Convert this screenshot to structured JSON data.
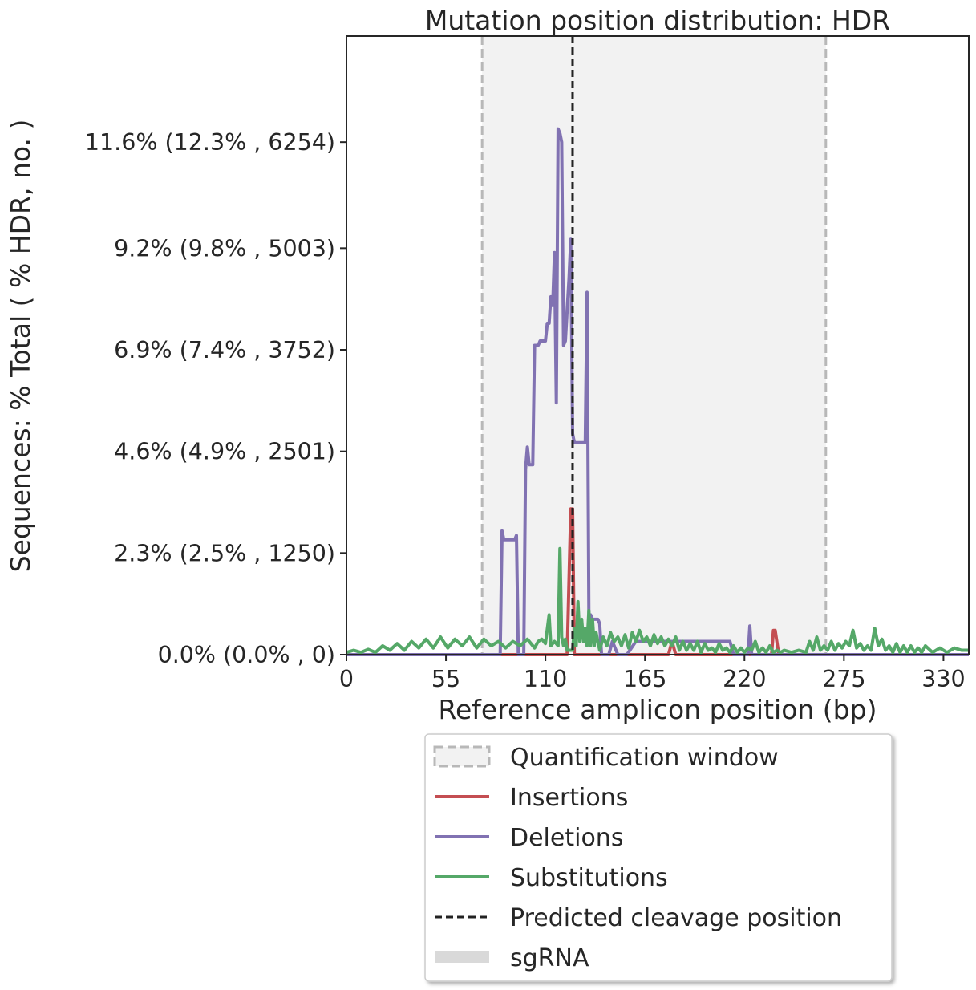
{
  "chart_data": {
    "type": "line",
    "title": "Mutation position distribution: HDR",
    "xlabel": "Reference amplicon position (bp)",
    "ylabel": "Sequences: % Total ( % HDR, no. )",
    "xlim": [
      0,
      344
    ],
    "ylim": [
      0,
      14
    ],
    "xticks": [
      0,
      55,
      110,
      165,
      220,
      275,
      330
    ],
    "yticks": [
      {
        "value": 0.0,
        "label": "0.0% (0.0% , 0)"
      },
      {
        "value": 2.3,
        "label": "2.3% (2.5% , 1250)"
      },
      {
        "value": 4.6,
        "label": "4.6% (4.9% , 2501)"
      },
      {
        "value": 6.9,
        "label": "6.9% (7.4% , 3752)"
      },
      {
        "value": 9.2,
        "label": "9.2% (9.8% , 5003)"
      },
      {
        "value": 11.6,
        "label": "11.6% (12.3% , 6254)"
      }
    ],
    "quantification_window": [
      75,
      265
    ],
    "predicted_cleavage_position": 125,
    "series": [
      {
        "name": "Insertions",
        "color": "#c44e52",
        "points": [
          [
            0,
            0
          ],
          [
            122,
            0
          ],
          [
            124,
            3.3
          ],
          [
            125,
            3.3
          ],
          [
            126,
            0
          ],
          [
            178,
            0
          ],
          [
            180,
            0.3
          ],
          [
            182,
            0
          ],
          [
            235,
            0
          ],
          [
            236,
            0.55
          ],
          [
            237,
            0.55
          ],
          [
            239,
            0
          ],
          [
            344,
            0
          ]
        ]
      },
      {
        "name": "Deletions",
        "color": "#8172b2",
        "points": [
          [
            0,
            0
          ],
          [
            85,
            0
          ],
          [
            86,
            2.8
          ],
          [
            87,
            2.6
          ],
          [
            93,
            2.6
          ],
          [
            94,
            2.7
          ],
          [
            95,
            0
          ],
          [
            98,
            0
          ],
          [
            99,
            4.2
          ],
          [
            100,
            4.7
          ],
          [
            101,
            4.3
          ],
          [
            102,
            4.3
          ],
          [
            103,
            4.3
          ],
          [
            104,
            7.0
          ],
          [
            106,
            7.0
          ],
          [
            107,
            7.1
          ],
          [
            110,
            7.1
          ],
          [
            111,
            7.5
          ],
          [
            112,
            7.5
          ],
          [
            113,
            8.1
          ],
          [
            114,
            7.9
          ],
          [
            115,
            9.1
          ],
          [
            116,
            5.7
          ],
          [
            117,
            11.9
          ],
          [
            118,
            11.8
          ],
          [
            119,
            11.6
          ],
          [
            120,
            7.0
          ],
          [
            121,
            7.1
          ],
          [
            122,
            7.8
          ],
          [
            123,
            8.5
          ],
          [
            124,
            9.4
          ],
          [
            125,
            5.0
          ],
          [
            126,
            4.8
          ],
          [
            127,
            4.8
          ],
          [
            131,
            4.8
          ],
          [
            132,
            4.8
          ],
          [
            133,
            8.2
          ],
          [
            134,
            0.9
          ],
          [
            135,
            0.9
          ],
          [
            136,
            0.8
          ],
          [
            139,
            0.8
          ],
          [
            140,
            0.7
          ],
          [
            141,
            0
          ],
          [
            145,
            0
          ],
          [
            147,
            0.3
          ],
          [
            150,
            0
          ],
          [
            155,
            0
          ],
          [
            160,
            0.3
          ],
          [
            170,
            0.3
          ],
          [
            180,
            0.3
          ],
          [
            190,
            0.3
          ],
          [
            200,
            0.3
          ],
          [
            212,
            0.3
          ],
          [
            214,
            0
          ],
          [
            222,
            0
          ],
          [
            223,
            0.65
          ],
          [
            224,
            0
          ],
          [
            344,
            0
          ]
        ]
      },
      {
        "name": "Substitutions",
        "color": "#55a868",
        "points": [
          [
            0,
            0.05
          ],
          [
            4,
            0.1
          ],
          [
            8,
            0.05
          ],
          [
            12,
            0.12
          ],
          [
            16,
            0.05
          ],
          [
            20,
            0.2
          ],
          [
            24,
            0.1
          ],
          [
            28,
            0.25
          ],
          [
            32,
            0.1
          ],
          [
            36,
            0.3
          ],
          [
            40,
            0.15
          ],
          [
            44,
            0.35
          ],
          [
            48,
            0.15
          ],
          [
            52,
            0.4
          ],
          [
            56,
            0.15
          ],
          [
            60,
            0.35
          ],
          [
            64,
            0.2
          ],
          [
            68,
            0.4
          ],
          [
            72,
            0.15
          ],
          [
            76,
            0.35
          ],
          [
            80,
            0.2
          ],
          [
            84,
            0.3
          ],
          [
            88,
            0.15
          ],
          [
            92,
            0.3
          ],
          [
            96,
            0.2
          ],
          [
            100,
            0.35
          ],
          [
            104,
            0.15
          ],
          [
            106,
            0.3
          ],
          [
            108,
            0.35
          ],
          [
            110,
            0.25
          ],
          [
            112,
            0.9
          ],
          [
            113,
            0.2
          ],
          [
            115,
            0.3
          ],
          [
            117,
            0.2
          ],
          [
            118,
            2.4
          ],
          [
            119,
            0.4
          ],
          [
            120,
            0.2
          ],
          [
            121,
            0.35
          ],
          [
            122,
            0.1
          ],
          [
            124,
            0.1
          ],
          [
            125,
            0.1
          ],
          [
            126,
            0.6
          ],
          [
            127,
            0.2
          ],
          [
            128,
            1.2
          ],
          [
            129,
            0.3
          ],
          [
            130,
            0.8
          ],
          [
            131,
            0.3
          ],
          [
            132,
            0.6
          ],
          [
            133,
            0.2
          ],
          [
            134,
            1.0
          ],
          [
            135,
            0.2
          ],
          [
            136,
            0.8
          ],
          [
            137,
            0.2
          ],
          [
            138,
            0.5
          ],
          [
            140,
            0.1
          ],
          [
            142,
            0.4
          ],
          [
            144,
            0.2
          ],
          [
            146,
            0.5
          ],
          [
            148,
            0.3
          ],
          [
            150,
            0.4
          ],
          [
            152,
            0.2
          ],
          [
            154,
            0.45
          ],
          [
            156,
            0.15
          ],
          [
            158,
            0.5
          ],
          [
            160,
            0.3
          ],
          [
            162,
            0.55
          ],
          [
            164,
            0.3
          ],
          [
            166,
            0.4
          ],
          [
            168,
            0.2
          ],
          [
            170,
            0.45
          ],
          [
            172,
            0.25
          ],
          [
            174,
            0.4
          ],
          [
            176,
            0.2
          ],
          [
            178,
            0.35
          ],
          [
            180,
            0.2
          ],
          [
            182,
            0.4
          ],
          [
            184,
            0.1
          ],
          [
            186,
            0.3
          ],
          [
            188,
            0.1
          ],
          [
            190,
            0.25
          ],
          [
            192,
            0.1
          ],
          [
            194,
            0.3
          ],
          [
            196,
            0.05
          ],
          [
            198,
            0.25
          ],
          [
            200,
            0.1
          ],
          [
            202,
            0.15
          ],
          [
            204,
            0.05
          ],
          [
            206,
            0.25
          ],
          [
            208,
            0.1
          ],
          [
            210,
            0.15
          ],
          [
            212,
            0.05
          ],
          [
            214,
            0.2
          ],
          [
            216,
            0.05
          ],
          [
            218,
            0.15
          ],
          [
            220,
            0.05
          ],
          [
            222,
            0.15
          ],
          [
            224,
            0.1
          ],
          [
            226,
            0.3
          ],
          [
            228,
            0.05
          ],
          [
            230,
            0.15
          ],
          [
            232,
            0.05
          ],
          [
            234,
            0.2
          ],
          [
            236,
            0.05
          ],
          [
            238,
            0.1
          ],
          [
            240,
            0.05
          ],
          [
            242,
            0.1
          ],
          [
            246,
            0.05
          ],
          [
            250,
            0.1
          ],
          [
            254,
            0.05
          ],
          [
            256,
            0.3
          ],
          [
            258,
            0.1
          ],
          [
            260,
            0.4
          ],
          [
            262,
            0.1
          ],
          [
            264,
            0.2
          ],
          [
            266,
            0.1
          ],
          [
            268,
            0.3
          ],
          [
            270,
            0.1
          ],
          [
            272,
            0.25
          ],
          [
            274,
            0.15
          ],
          [
            276,
            0.3
          ],
          [
            278,
            0.2
          ],
          [
            280,
            0.55
          ],
          [
            282,
            0.15
          ],
          [
            284,
            0.25
          ],
          [
            286,
            0.1
          ],
          [
            288,
            0.2
          ],
          [
            290,
            0.1
          ],
          [
            292,
            0.6
          ],
          [
            294,
            0.2
          ],
          [
            296,
            0.35
          ],
          [
            298,
            0.1
          ],
          [
            300,
            0.2
          ],
          [
            302,
            0.05
          ],
          [
            304,
            0.25
          ],
          [
            306,
            0.05
          ],
          [
            308,
            0.2
          ],
          [
            310,
            0.05
          ],
          [
            312,
            0.2
          ],
          [
            314,
            0.05
          ],
          [
            316,
            0.15
          ],
          [
            318,
            0.05
          ],
          [
            320,
            0.2
          ],
          [
            324,
            0.05
          ],
          [
            328,
            0.15
          ],
          [
            332,
            0.05
          ],
          [
            336,
            0.15
          ],
          [
            340,
            0.1
          ],
          [
            344,
            0.1
          ]
        ]
      }
    ],
    "legend": {
      "placement": "below",
      "entries": [
        {
          "label": "Quantification window",
          "kind": "window"
        },
        {
          "label": "Insertions",
          "kind": "line",
          "color": "#c44e52"
        },
        {
          "label": "Deletions",
          "kind": "line",
          "color": "#8172b2"
        },
        {
          "label": "Substitutions",
          "kind": "line",
          "color": "#55a868"
        },
        {
          "label": "Predicted cleavage position",
          "kind": "dashed",
          "color": "#222222"
        },
        {
          "label": "sgRNA",
          "kind": "thick",
          "color": "#d9d9d9"
        }
      ]
    }
  }
}
